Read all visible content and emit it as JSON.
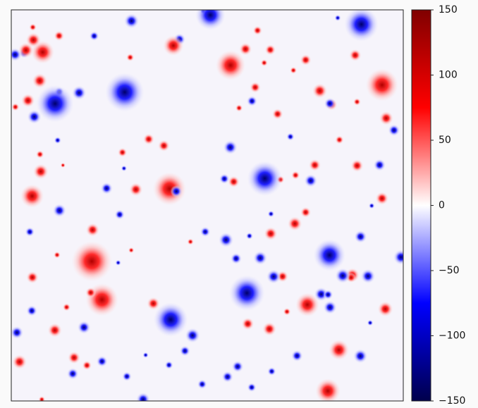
{
  "chart_data": {
    "type": "heatmap",
    "colormap": "seismic",
    "clim": [
      -150,
      150
    ],
    "cticks": [
      {
        "value": 150,
        "label": "150"
      },
      {
        "value": 100,
        "label": "100"
      },
      {
        "value": 50,
        "label": "50"
      },
      {
        "value": 0,
        "label": "0"
      },
      {
        "value": -50,
        "label": "−50"
      },
      {
        "value": -100,
        "label": "−100"
      },
      {
        "value": -150,
        "label": "−150"
      }
    ]
  }
}
